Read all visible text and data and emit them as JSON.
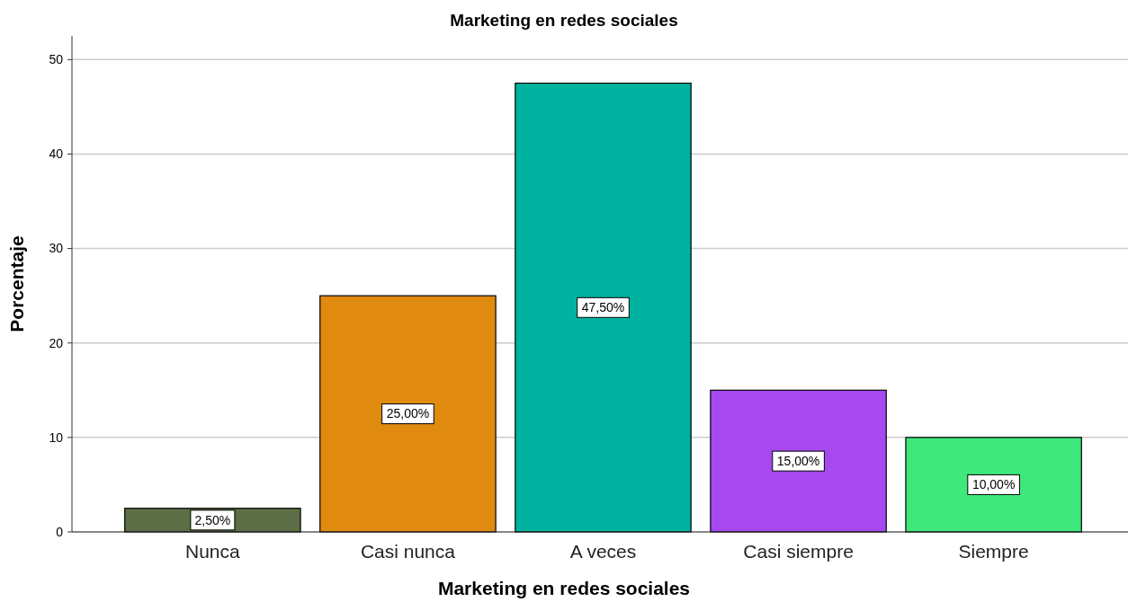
{
  "chart_data": {
    "type": "bar",
    "title": "Marketing en redes sociales",
    "xlabel": "Marketing en redes sociales",
    "ylabel": "Porcentaje",
    "categories": [
      "Nunca",
      "Casi nunca",
      "A veces",
      "Casi siempre",
      "Siempre"
    ],
    "values": [
      2.5,
      25,
      47.5,
      15,
      10
    ],
    "colors": [
      "#5b6e45",
      "#e08a10",
      "#00b3a0",
      "#a64af0",
      "#3ee87a"
    ],
    "value_labels": [
      "2,50%",
      "25,00%",
      "47,50%",
      "15,00%",
      "10,00%"
    ],
    "ylim": [
      0,
      52.5
    ],
    "yticks": [
      0,
      10,
      20,
      30,
      40,
      50
    ],
    "grid": "y"
  }
}
